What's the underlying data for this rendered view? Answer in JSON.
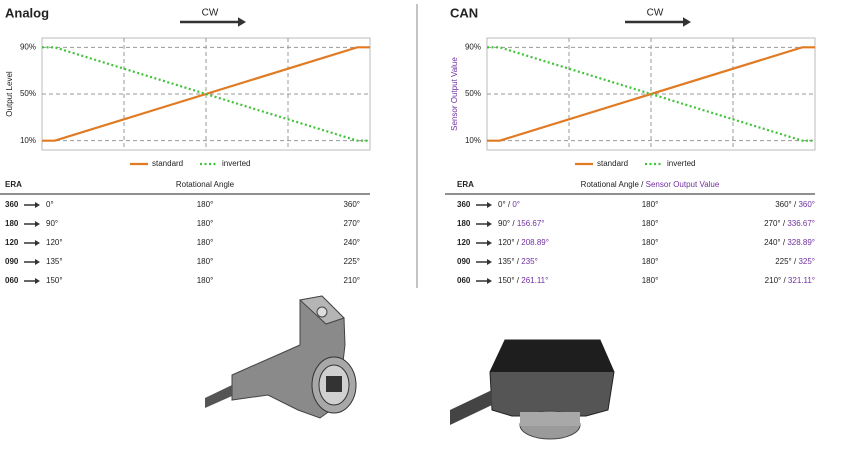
{
  "chart_data": [
    {
      "type": "line",
      "title": "Analog",
      "annotation": "CW",
      "y_label": "Output Level",
      "y_label_color": "#222222",
      "x": [
        0,
        14,
        346,
        360
      ],
      "xlim": [
        0,
        360
      ],
      "ylim": [
        2,
        98
      ],
      "yticks": [
        {
          "value": 10,
          "label": "10%"
        },
        {
          "value": 50,
          "label": "50%"
        },
        {
          "value": 90,
          "label": "90%"
        }
      ],
      "grid": true,
      "series": [
        {
          "name": "standard",
          "color": "#e07b24",
          "style": "solid",
          "values": [
            10,
            10,
            90,
            90
          ]
        },
        {
          "name": "inverted",
          "color": "#3fc337",
          "style": "dotted",
          "values": [
            90,
            90,
            10,
            10
          ]
        }
      ]
    },
    {
      "type": "line",
      "title": "CAN",
      "annotation": "CW",
      "y_label": "Sensor Output Value",
      "y_label_color": "#7030a0",
      "x": [
        0,
        14,
        346,
        360
      ],
      "xlim": [
        0,
        360
      ],
      "ylim": [
        2,
        98
      ],
      "yticks": [
        {
          "value": 10,
          "label": "10%"
        },
        {
          "value": 50,
          "label": "50%"
        },
        {
          "value": 90,
          "label": "90%"
        }
      ],
      "grid": true,
      "series": [
        {
          "name": "standard",
          "color": "#e07b24",
          "style": "solid",
          "values": [
            10,
            10,
            90,
            90
          ]
        },
        {
          "name": "inverted",
          "color": "#3fc337",
          "style": "dotted",
          "values": [
            90,
            90,
            10,
            10
          ]
        }
      ]
    }
  ],
  "tables": [
    {
      "header": [
        "ERA",
        "Rotational Angle"
      ],
      "rows": [
        [
          "360",
          "0°",
          "180°",
          "360°"
        ],
        [
          "180",
          "90°",
          "180°",
          "270°"
        ],
        [
          "120",
          "120°",
          "180°",
          "240°"
        ],
        [
          "090",
          "135°",
          "180°",
          "225°"
        ],
        [
          "060",
          "150°",
          "180°",
          "210°"
        ]
      ]
    },
    {
      "header": [
        "ERA",
        "Rotational Angle",
        "Sensor Output Value"
      ],
      "separator": "/",
      "rows": [
        [
          "360",
          "0°",
          "0°",
          "180°",
          "360°",
          "360°"
        ],
        [
          "180",
          "90°",
          "156.67°",
          "180°",
          "270°",
          "336.67°"
        ],
        [
          "120",
          "120°",
          "208.89°",
          "180°",
          "240°",
          "328.89°"
        ],
        [
          "090",
          "135°",
          "235°",
          "180°",
          "225°",
          "325°"
        ],
        [
          "060",
          "150°",
          "261.11°",
          "180°",
          "210°",
          "321.11°"
        ]
      ]
    }
  ]
}
